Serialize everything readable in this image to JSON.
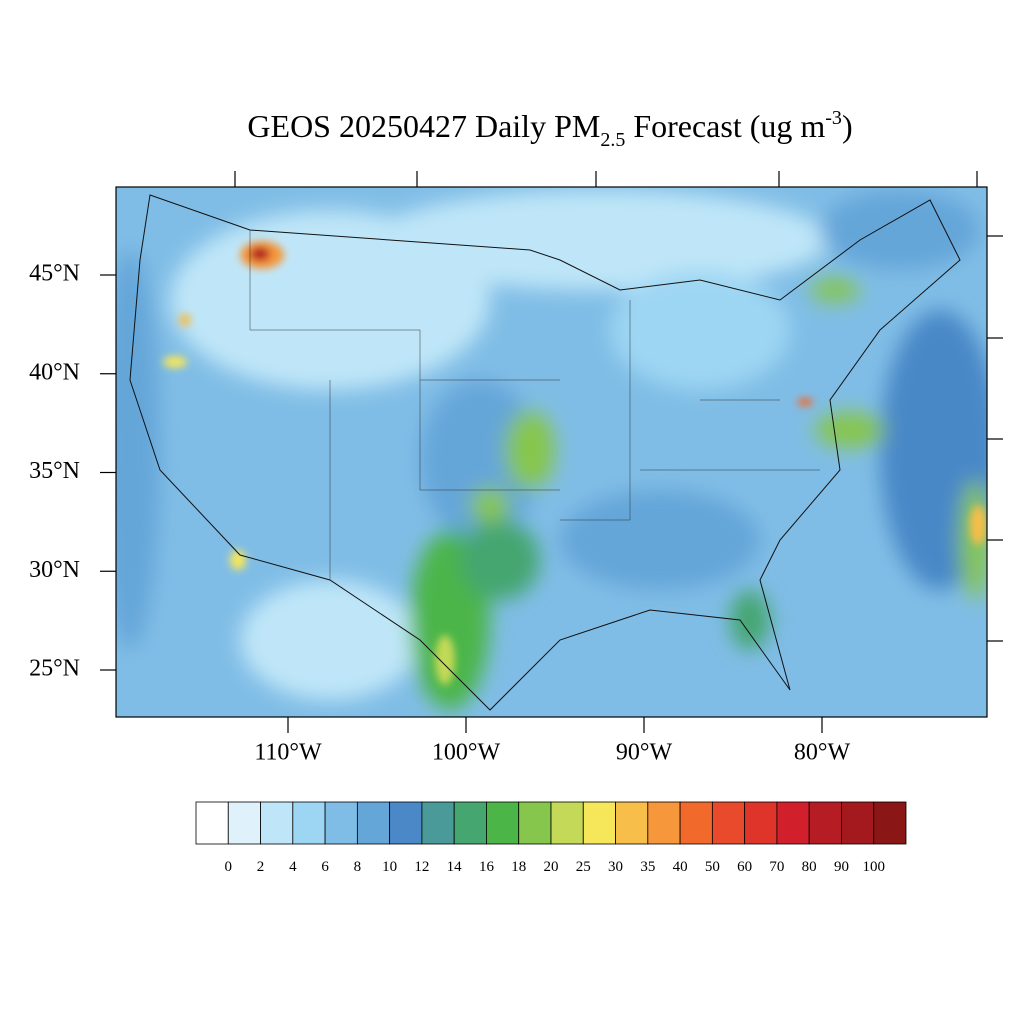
{
  "title": {
    "main": "GEOS 20250427 Daily PM",
    "sub": "2.5",
    "mid": " Forecast (ug m",
    "sup": "-3",
    "end": ")"
  },
  "lat_ticks": [
    {
      "value": 45,
      "label": "45°N"
    },
    {
      "value": 40,
      "label": "40°N"
    },
    {
      "value": 35,
      "label": "35°N"
    },
    {
      "value": 30,
      "label": "30°N"
    },
    {
      "value": 25,
      "label": "25°N"
    }
  ],
  "lon_ticks": [
    {
      "value": -110,
      "label": "110°W"
    },
    {
      "value": -100,
      "label": "100°W"
    },
    {
      "value": -90,
      "label": "90°W"
    },
    {
      "value": -80,
      "label": "80°W"
    }
  ],
  "colorbar": {
    "colors": [
      "#ffffff",
      "#dff1fb",
      "#bfe6f8",
      "#9dd6f3",
      "#80bde6",
      "#65a6d9",
      "#4a88c7",
      "#4a9a9a",
      "#45a670",
      "#4bb548",
      "#86c64c",
      "#c3d957",
      "#f6e65a",
      "#f8be4a",
      "#f5973a",
      "#f26a2b",
      "#e84a2b",
      "#de342a",
      "#d11f2b",
      "#b51c24",
      "#a3191e",
      "#8b1616"
    ],
    "labels": [
      0,
      2,
      4,
      6,
      8,
      10,
      12,
      14,
      16,
      18,
      20,
      25,
      30,
      35,
      40,
      50,
      60,
      70,
      80,
      90,
      100
    ]
  }
}
